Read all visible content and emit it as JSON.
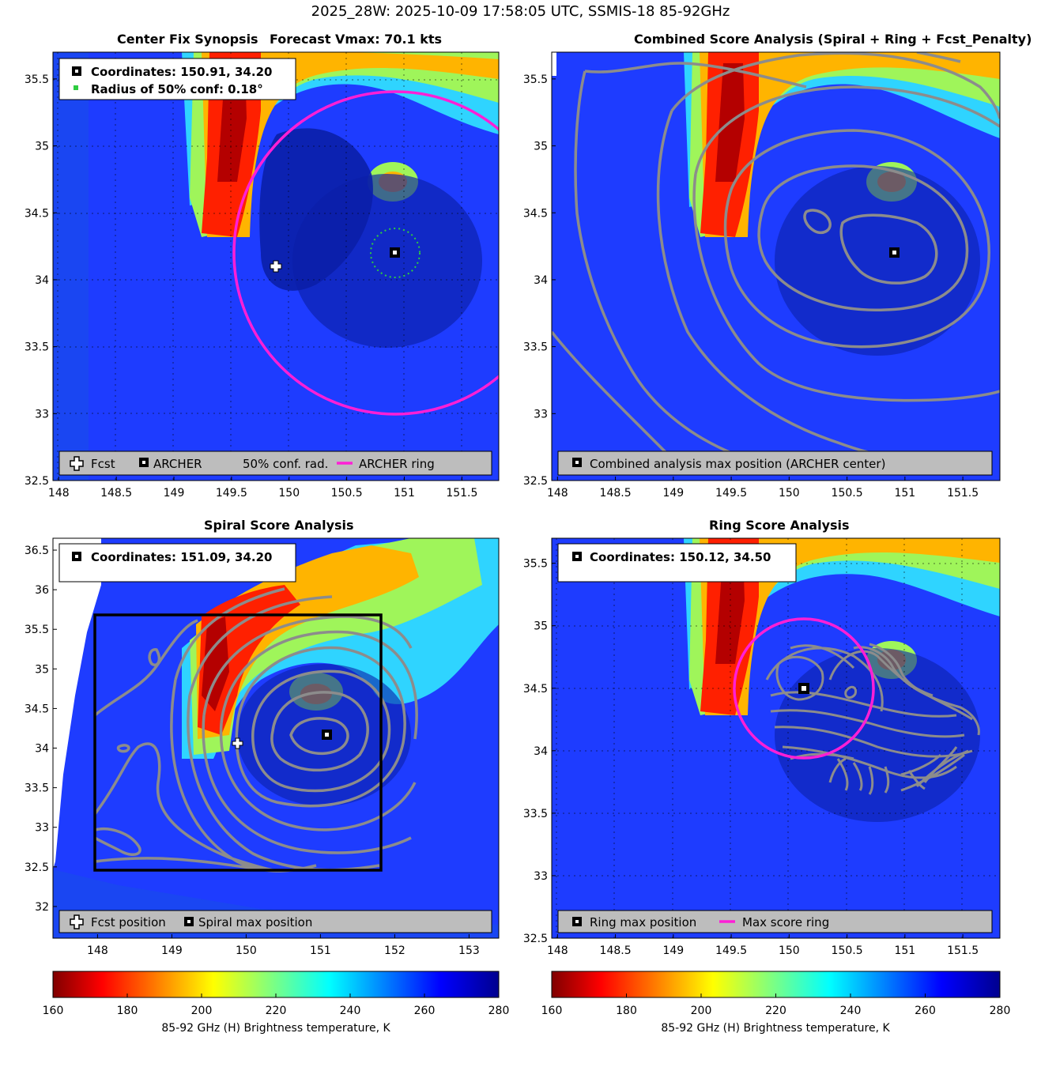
{
  "suptitle": "2025_28W: 2025-10-09 17:58:05 UTC, SSMIS-18 85-92GHz",
  "colors": {
    "ring_magenta": "#ff1fd6",
    "contour_gray": "#8c8c8c",
    "conf_green": "#2ecc40",
    "legend_bg": "#bdbdbd"
  },
  "colormap": "jet reversed (dark red = cold / low Tb, dark blue = warm / high Tb)",
  "panels": {
    "synopsis": {
      "title": "Center Fix Synopsis",
      "subtitle": "Forecast Vmax: 70.1 kts",
      "info": [
        "Coordinates: 150.91, 34.20",
        "Radius of 50% conf: 0.18°"
      ],
      "legend": {
        "fcst": "Fcst",
        "archer": "ARCHER",
        "conf": "50% conf. rad.",
        "ring": "ARCHER ring"
      }
    },
    "combined": {
      "title": "Combined Score Analysis (Spiral + Ring + Fcst_Penalty)",
      "legend": {
        "max": "Combined analysis max position (ARCHER center)"
      }
    },
    "spiral": {
      "title": "Spiral Score Analysis",
      "info": [
        "Coordinates: 151.09, 34.20"
      ],
      "legend": {
        "fcst": "Fcst position",
        "max": "Spiral max position"
      }
    },
    "ring": {
      "title": "Ring Score Analysis",
      "info": [
        "Coordinates: 150.12, 34.50"
      ],
      "legend": {
        "max": "Ring max position",
        "ring": "Max score ring"
      }
    }
  },
  "colorbar": {
    "label": "85-92 GHz (H) Brightness temperature, K",
    "ticks": [
      "160",
      "180",
      "200",
      "220",
      "240",
      "260",
      "280"
    ],
    "range": [
      160,
      280
    ]
  },
  "chart_data": [
    {
      "type": "heatmap",
      "name": "synopsis",
      "xlim": [
        147.95,
        151.82
      ],
      "ylim": [
        32.5,
        35.7
      ],
      "xticks": [
        "148",
        "148.5",
        "149",
        "149.5",
        "150",
        "150.5",
        "151",
        "151.5"
      ],
      "yticks": [
        "32.5",
        "33",
        "33.5",
        "34",
        "34.5",
        "35",
        "35.5"
      ],
      "grid": true,
      "forecast_position": [
        149.89,
        34.1
      ],
      "archer_center": [
        150.91,
        34.2
      ],
      "archer_ring_radius_deg": 1.0,
      "conf_radius_deg": 0.18
    },
    {
      "type": "heatmap",
      "name": "combined",
      "xlim": [
        147.95,
        151.82
      ],
      "ylim": [
        32.5,
        35.7
      ],
      "xticks": [
        "148",
        "148.5",
        "149",
        "149.5",
        "150",
        "150.5",
        "151",
        "151.5"
      ],
      "yticks": [
        "32.5",
        "33",
        "33.5",
        "34",
        "34.5",
        "35",
        "35.5"
      ],
      "max_position": [
        150.91,
        34.2
      ]
    },
    {
      "type": "heatmap",
      "name": "spiral",
      "xlim": [
        147.4,
        153.4
      ],
      "ylim": [
        31.6,
        36.65
      ],
      "xticks": [
        "148",
        "149",
        "150",
        "151",
        "152",
        "153"
      ],
      "yticks": [
        "32",
        "32.5",
        "33",
        "33.5",
        "34",
        "34.5",
        "35",
        "35.5",
        "36",
        "36.5"
      ],
      "forecast_position": [
        149.89,
        34.1
      ],
      "max_position": [
        151.09,
        34.2
      ],
      "search_box": {
        "lon": [
          147.9,
          151.8
        ],
        "lat": [
          32.5,
          35.7
        ]
      }
    },
    {
      "type": "heatmap",
      "name": "ring",
      "xlim": [
        147.95,
        151.82
      ],
      "ylim": [
        32.5,
        35.7
      ],
      "xticks": [
        "148",
        "148.5",
        "149",
        "149.5",
        "150",
        "150.5",
        "151",
        "151.5"
      ],
      "yticks": [
        "32.5",
        "33",
        "33.5",
        "34",
        "34.5",
        "35",
        "35.5"
      ],
      "grid": true,
      "max_position": [
        150.12,
        34.5
      ],
      "max_ring_radius_deg": 0.6
    }
  ]
}
